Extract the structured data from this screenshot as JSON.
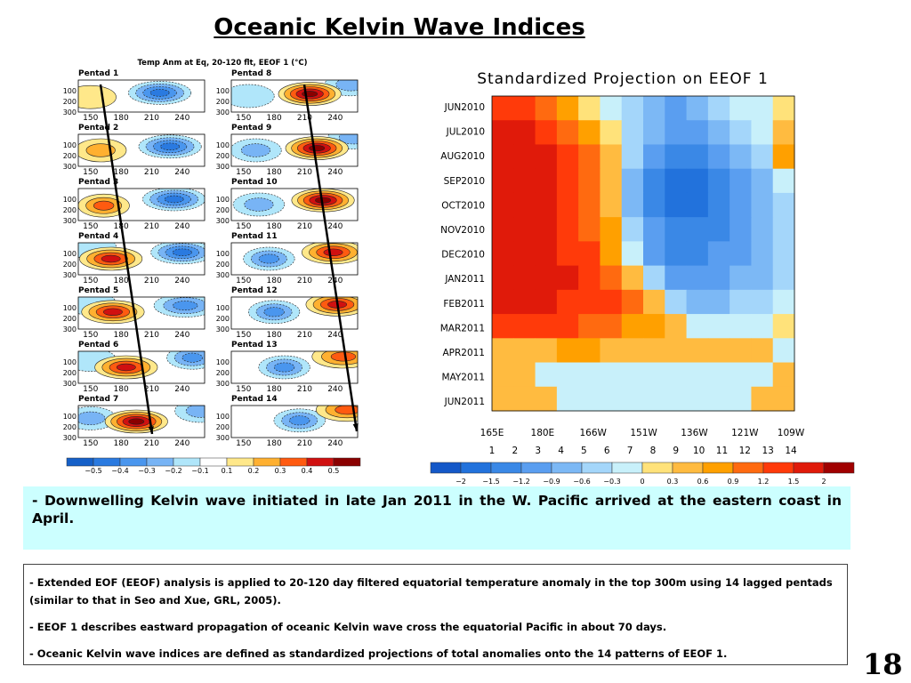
{
  "slide": {
    "title": "Oceanic Kelvin Wave Indices",
    "page_number": "18",
    "highlight_dash": "-",
    "highlight": "Downwelling Kelvin wave initiated in late Jan 2011 in the W. Pacific arrived at the eastern coast in April.",
    "notes": [
      {
        "dash": "-",
        "text": "Extended EOF (EEOF) analysis is applied to 20-120 day filtered equatorial temperature anomaly in the top 300m using 14 lagged pentads (similar to that in Seo and Xue, GRL, 2005)."
      },
      {
        "dash": "-",
        "text": "EEOF 1 describes eastward propagation of  oceanic Kelvin wave cross the equatorial Pacific in about  70 days."
      },
      {
        "dash": "-",
        "text": "Oceanic Kelvin wave indices are defined as standardized projections of total anomalies onto the 14 patterns of  EEOF 1."
      }
    ]
  },
  "chart_data": [
    {
      "type": "heatmap",
      "title": "Temp Anm at Eq, 20-120 flt, EEOF 1  (°C)",
      "panels": [
        {
          "label": "Pentad 1",
          "warm": [
            [
              150,
              160,
              0.15
            ]
          ],
          "cold": [
            [
              218,
              120,
              -0.45
            ]
          ]
        },
        {
          "label": "Pentad 2",
          "warm": [
            [
              160,
              150,
              0.25
            ]
          ],
          "cold": [
            [
              228,
              115,
              -0.45
            ]
          ]
        },
        {
          "label": "Pentad 3",
          "warm": [
            [
              163,
              160,
              0.3
            ]
          ],
          "cold": [
            [
              232,
              100,
              -0.45
            ]
          ]
        },
        {
          "label": "Pentad 4",
          "warm": [
            [
              170,
              150,
              0.4
            ]
          ],
          "cold": [
            [
              240,
              90,
              -0.4
            ],
            [
              150,
              40,
              -0.15
            ]
          ]
        },
        {
          "label": "Pentad 5",
          "warm": [
            [
              172,
              140,
              0.45
            ]
          ],
          "cold": [
            [
              243,
              80,
              -0.35
            ],
            [
              150,
              60,
              -0.15
            ]
          ]
        },
        {
          "label": "Pentad 6",
          "warm": [
            [
              185,
              150,
              0.45
            ]
          ],
          "cold": [
            [
              250,
              60,
              -0.3
            ],
            [
              150,
              80,
              -0.15
            ]
          ]
        },
        {
          "label": "Pentad 7",
          "warm": [
            [
              195,
              150,
              0.55
            ]
          ],
          "cold": [
            [
              150,
              120,
              -0.2
            ],
            [
              258,
              50,
              -0.2
            ]
          ]
        },
        {
          "label": "Pentad 8",
          "warm": [
            [
              215,
              130,
              0.55
            ]
          ],
          "cold": [
            [
              155,
              150,
              -0.15
            ],
            [
              255,
              40,
              -0.25
            ]
          ]
        },
        {
          "label": "Pentad 9",
          "warm": [
            [
              222,
              130,
              0.55
            ]
          ],
          "cold": [
            [
              162,
              150,
              -0.25
            ],
            [
              258,
              30,
              -0.25
            ]
          ]
        },
        {
          "label": "Pentad 10",
          "warm": [
            [
              228,
              110,
              0.5
            ]
          ],
          "cold": [
            [
              165,
              150,
              -0.25
            ]
          ]
        },
        {
          "label": "Pentad 11",
          "warm": [
            [
              238,
              90,
              0.45
            ]
          ],
          "cold": [
            [
              175,
              150,
              -0.3
            ]
          ]
        },
        {
          "label": "Pentad 12",
          "warm": [
            [
              242,
              70,
              0.45
            ]
          ],
          "cold": [
            [
              180,
              140,
              -0.3
            ]
          ]
        },
        {
          "label": "Pentad 13",
          "warm": [
            [
              248,
              50,
              0.35
            ]
          ],
          "cold": [
            [
              190,
              150,
              -0.3
            ]
          ]
        },
        {
          "label": "Pentad 14",
          "warm": [
            [
              252,
              40,
              0.35
            ]
          ],
          "cold": [
            [
              205,
              140,
              -0.3
            ]
          ]
        }
      ],
      "xticks": [
        "150",
        "180",
        "210",
        "240"
      ],
      "xtick_values": [
        150,
        180,
        210,
        240
      ],
      "xlim": [
        138,
        262
      ],
      "yticks": [
        "100",
        "200",
        "300"
      ],
      "ytick_values": [
        100,
        200,
        300
      ],
      "ylim": [
        300,
        0
      ],
      "colorbar": {
        "labels": [
          "−0.5",
          "−0.4",
          "−0.3",
          "−0.2",
          "−0.1",
          "0.1",
          "0.2",
          "0.3",
          "0.4",
          "0.5"
        ],
        "levels": [
          -0.5,
          -0.4,
          -0.3,
          -0.2,
          -0.1,
          0.1,
          0.2,
          0.3,
          0.4,
          0.5
        ],
        "colors": [
          "#1560c8",
          "#2a7ae0",
          "#4a96ee",
          "#78b4f5",
          "#b0e6fa",
          "#ffffff",
          "#ffe88a",
          "#ffb030",
          "#ff5a10",
          "#d01010",
          "#8a0000"
        ]
      }
    },
    {
      "type": "heatmap",
      "title": "Standardized Projection on EEOF 1",
      "x_labels": [
        "165E",
        "180E",
        "166W",
        "151W",
        "136W",
        "121W",
        "109W"
      ],
      "x_label_pentads": [
        1,
        3.2,
        5.4,
        7.6,
        9.8,
        12,
        14
      ],
      "pentads": [
        "1",
        "2",
        "3",
        "4",
        "5",
        "6",
        "7",
        "8",
        "9",
        "10",
        "11",
        "12",
        "13",
        "14"
      ],
      "y_labels": [
        "JUN2010",
        "JUL2010",
        "AUG2010",
        "SEP2010",
        "OCT2010",
        "NOV2010",
        "DEC2010",
        "JAN2011",
        "FEB2011",
        "MAR2011",
        "APR2011",
        "MAY2011",
        "JUN2011"
      ],
      "values": [
        [
          1.2,
          1.2,
          1.0,
          0.6,
          0.2,
          -0.3,
          -0.6,
          -0.9,
          -1.2,
          -0.9,
          -0.6,
          -0.3,
          -0.3,
          0.0
        ],
        [
          1.5,
          1.5,
          1.2,
          0.9,
          0.6,
          0.2,
          -0.6,
          -0.9,
          -1.2,
          -1.2,
          -0.9,
          -0.6,
          -0.3,
          0.3
        ],
        [
          1.5,
          1.5,
          1.5,
          1.2,
          0.9,
          0.3,
          -0.6,
          -1.2,
          -1.5,
          -1.5,
          -1.2,
          -0.9,
          -0.6,
          0.6
        ],
        [
          1.8,
          1.5,
          1.5,
          1.2,
          0.9,
          0.3,
          -0.9,
          -1.5,
          -1.8,
          -1.8,
          -1.5,
          -1.2,
          -0.9,
          -0.3
        ],
        [
          1.8,
          1.8,
          1.5,
          1.2,
          0.9,
          0.3,
          -0.9,
          -1.5,
          -1.8,
          -1.8,
          -1.5,
          -1.2,
          -0.9,
          -0.6
        ],
        [
          1.5,
          1.5,
          1.5,
          1.2,
          0.9,
          0.6,
          -0.6,
          -1.2,
          -1.5,
          -1.5,
          -1.5,
          -1.2,
          -0.9,
          -0.6
        ],
        [
          1.5,
          1.5,
          1.5,
          1.2,
          1.2,
          0.6,
          -0.3,
          -1.2,
          -1.5,
          -1.5,
          -1.2,
          -1.2,
          -0.9,
          -0.6
        ],
        [
          1.8,
          1.8,
          1.5,
          1.5,
          1.2,
          0.9,
          0.3,
          -0.6,
          -1.2,
          -1.2,
          -1.2,
          -0.9,
          -0.9,
          -0.6
        ],
        [
          1.5,
          1.5,
          1.5,
          1.2,
          1.2,
          1.2,
          0.9,
          0.3,
          -0.6,
          -0.9,
          -0.9,
          -0.6,
          -0.6,
          -0.3
        ],
        [
          1.2,
          1.2,
          1.2,
          1.2,
          0.9,
          0.9,
          0.6,
          0.6,
          0.3,
          -0.3,
          -0.3,
          -0.3,
          -0.3,
          0.0
        ],
        [
          0.3,
          0.3,
          0.3,
          0.6,
          0.6,
          0.3,
          0.3,
          0.3,
          0.3,
          0.3,
          0.3,
          0.3,
          0.3,
          -0.3
        ],
        [
          0.3,
          0.3,
          -0.3,
          -0.3,
          -0.3,
          -0.3,
          -0.3,
          -0.3,
          -0.3,
          -0.3,
          -0.3,
          -0.3,
          -0.3,
          0.3
        ],
        [
          0.3,
          0.3,
          0.3,
          -0.3,
          -0.3,
          -0.3,
          -0.3,
          -0.3,
          -0.3,
          -0.3,
          -0.3,
          -0.3,
          0.3,
          0.3
        ]
      ],
      "colorbar": {
        "labels": [
          "−2",
          "−1.5",
          "−1.2",
          "−0.9",
          "−0.6",
          "−0.3",
          "0",
          "0.3",
          "0.6",
          "0.9",
          "1.2",
          "1.5",
          "2"
        ],
        "levels": [
          -2,
          -1.5,
          -1.2,
          -0.9,
          -0.6,
          -0.3,
          0,
          0.3,
          0.6,
          0.9,
          1.2,
          1.5,
          2
        ],
        "colors": [
          "#1458c8",
          "#2272dc",
          "#3a88e6",
          "#5a9ef0",
          "#7cb8f5",
          "#a4d6fa",
          "#c8f0fa",
          "#ffe27a",
          "#ffbb40",
          "#ffa000",
          "#ff6a10",
          "#ff3a0a",
          "#e01a0a",
          "#a00000"
        ]
      }
    }
  ]
}
